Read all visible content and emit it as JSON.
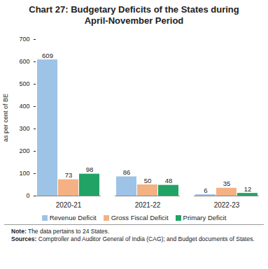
{
  "chart_data": {
    "type": "bar",
    "title": "Chart 27: Budgetary Deficits of the States during April-November Period",
    "categories": [
      "2020-21",
      "2021-22",
      "2022-23"
    ],
    "series": [
      {
        "name": "Revenue Deficit",
        "color": "#9dc3e6",
        "values": [
          609,
          86,
          6
        ]
      },
      {
        "name": "Gross Fiscal Deficit",
        "color": "#f4b183",
        "values": [
          73,
          50,
          35
        ]
      },
      {
        "name": "Primary Deficit",
        "color": "#21a366",
        "values": [
          98,
          48,
          12
        ]
      }
    ],
    "y_label": "as per cent of BE",
    "ylim": [
      0,
      700
    ],
    "yticks": [
      0,
      100,
      200,
      300,
      400,
      500,
      600,
      700
    ],
    "data_labels": true,
    "legend": "bottom",
    "notes": [
      "Note: The data pertains to 24 States.",
      "Sources: Comptroller and Auditor General of India (CAG); and Budget documents of States."
    ]
  }
}
